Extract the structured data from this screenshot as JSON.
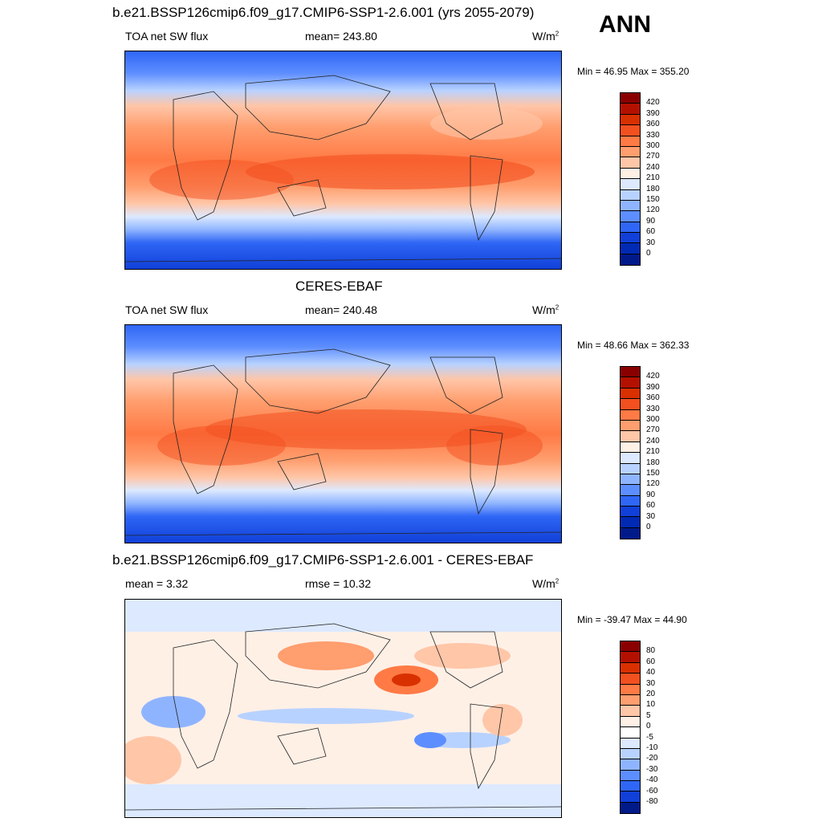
{
  "season": "ANN",
  "panels": [
    {
      "title": "b.e21.BSSP126cmip6.f09_g17.CMIP6-SSP1-2.6.001 (yrs 2055-2079)",
      "left": "TOA net SW flux",
      "center": "mean= 243.80",
      "units": "W/m",
      "units_sup": "2",
      "minmax": "Min =  46.95 Max = 355.20",
      "colorbar_ticks": [
        "420",
        "390",
        "360",
        "330",
        "300",
        "270",
        "240",
        "210",
        "180",
        "150",
        "120",
        "90",
        "60",
        "30",
        "0"
      ],
      "colors": [
        "#8a0000",
        "#b41000",
        "#d93000",
        "#f35020",
        "#ff7a45",
        "#ff9e6e",
        "#ffc6a8",
        "#fff0e6",
        "#dce9ff",
        "#b8d2ff",
        "#8fb4ff",
        "#5d8eff",
        "#2f66f5",
        "#1040d8",
        "#002ab3",
        "#001a8a"
      ]
    },
    {
      "title": "CERES-EBAF",
      "left": "TOA net SW flux",
      "center": "mean= 240.48",
      "units": "W/m",
      "units_sup": "2",
      "minmax": "Min =  48.66 Max = 362.33",
      "colorbar_ticks": [
        "420",
        "390",
        "360",
        "330",
        "300",
        "270",
        "240",
        "210",
        "180",
        "150",
        "120",
        "90",
        "60",
        "30",
        "0"
      ],
      "colors": [
        "#8a0000",
        "#b41000",
        "#d93000",
        "#f35020",
        "#ff7a45",
        "#ff9e6e",
        "#ffc6a8",
        "#fff0e6",
        "#dce9ff",
        "#b8d2ff",
        "#8fb4ff",
        "#5d8eff",
        "#2f66f5",
        "#1040d8",
        "#002ab3",
        "#001a8a"
      ]
    },
    {
      "title": "b.e21.BSSP126cmip6.f09_g17.CMIP6-SSP1-2.6.001 - CERES-EBAF",
      "left": "mean =   3.32",
      "center": "rmse =  10.32",
      "units": "W/m",
      "units_sup": "2",
      "minmax": "Min = -39.47 Max =  44.90",
      "colorbar_ticks": [
        "80",
        "60",
        "40",
        "30",
        "20",
        "10",
        "5",
        "0",
        "-5",
        "-10",
        "-20",
        "-30",
        "-40",
        "-60",
        "-80"
      ],
      "colors": [
        "#8a0000",
        "#b41000",
        "#d93000",
        "#f35020",
        "#ff7a45",
        "#ff9e6e",
        "#ffc6a8",
        "#fff0e6",
        "#ffffff",
        "#dce9ff",
        "#b8d2ff",
        "#8fb4ff",
        "#5d8eff",
        "#2f66f5",
        "#1040d8",
        "#001a8a"
      ]
    }
  ]
}
